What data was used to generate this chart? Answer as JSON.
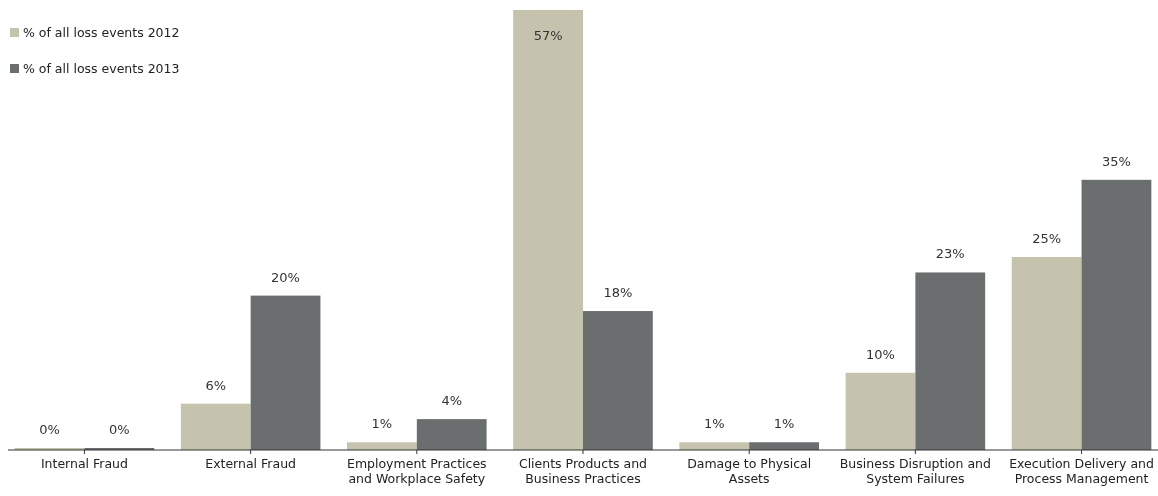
{
  "chart_data": {
    "type": "bar",
    "categories": [
      "Internal Fraud",
      "External Fraud",
      "Employment Practices and Workplace Safety",
      "Clients Products and Business Practices",
      "Damage to Physical Assets",
      "Business Disruption and System Failures",
      "Execution Delivery and Process Management"
    ],
    "series": [
      {
        "name": "% of all loss events 2012",
        "color": "#c5c3ae",
        "values": [
          0,
          6,
          1,
          57,
          1,
          10,
          25
        ],
        "value_labels": [
          "0%",
          "6%",
          "1%",
          "57%",
          "1%",
          "10%",
          "25%"
        ]
      },
      {
        "name": "% of all loss events 2013",
        "color": "#6b6e6e",
        "values": [
          0,
          20,
          4,
          18,
          1,
          23,
          35
        ],
        "value_labels": [
          "0%",
          "20%",
          "4%",
          "18%",
          "1%",
          "23%",
          "35%"
        ]
      }
    ],
    "legend": "top left",
    "tick_labels": "x"
  }
}
